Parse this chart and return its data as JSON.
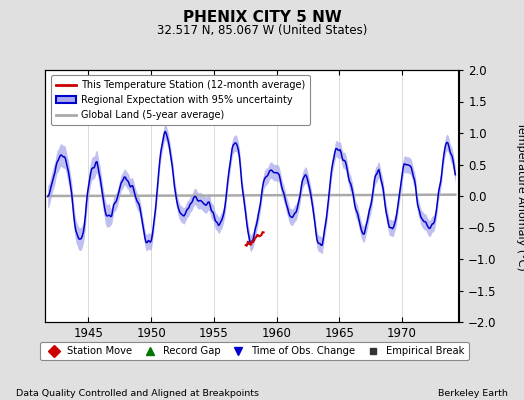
{
  "title": "PHENIX CITY 5 NW",
  "subtitle": "32.517 N, 85.067 W (United States)",
  "xlabel_bottom_left": "Data Quality Controlled and Aligned at Breakpoints",
  "xlabel_bottom_right": "Berkeley Earth",
  "ylabel": "Temperature Anomaly (°C)",
  "xlim": [
    1941.5,
    1974.5
  ],
  "ylim": [
    -2,
    2
  ],
  "xticks": [
    1945,
    1950,
    1955,
    1960,
    1965,
    1970
  ],
  "yticks": [
    -2,
    -1.5,
    -1,
    -0.5,
    0,
    0.5,
    1,
    1.5,
    2
  ],
  "bg_color": "#e0e0e0",
  "plot_bg_color": "#ffffff",
  "regional_line_color": "#0000cc",
  "regional_fill_color": "#aaaaee",
  "station_line_color": "#cc0000",
  "global_land_color": "#aaaaaa",
  "legend_labels": [
    "This Temperature Station (12-month average)",
    "Regional Expectation with 95% uncertainty",
    "Global Land (5-year average)"
  ],
  "bottom_legend_items": [
    {
      "label": "Station Move",
      "color": "#cc0000",
      "marker": "D",
      "markersize": 6
    },
    {
      "label": "Record Gap",
      "color": "#007700",
      "marker": "^",
      "markersize": 6
    },
    {
      "label": "Time of Obs. Change",
      "color": "#0000cc",
      "marker": "v",
      "markersize": 6
    },
    {
      "label": "Empirical Break",
      "color": "#333333",
      "marker": "s",
      "markersize": 5
    }
  ]
}
